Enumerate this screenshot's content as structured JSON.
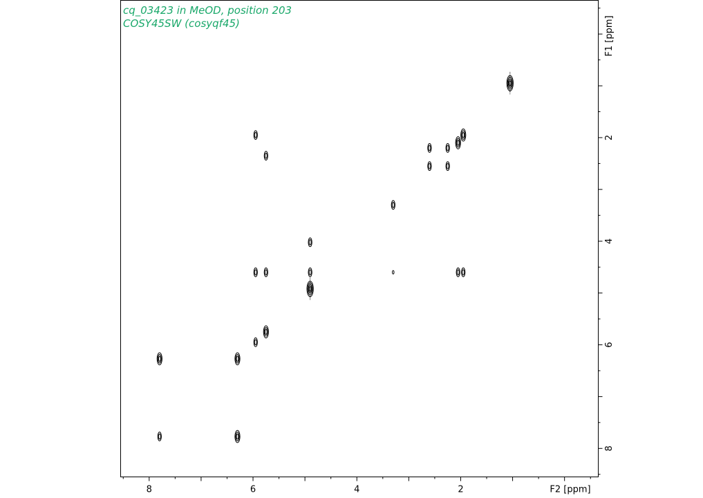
{
  "title_lines": [
    "cq_03423 in MeOD, position 203",
    "COSY45SW (cosyqf45)"
  ],
  "title_color": "#1aa86a",
  "chart_data": {
    "type": "scatter",
    "subtype": "2D NMR contour plot (COSY)",
    "x_axis": {
      "label": "F2 [ppm]",
      "range": [
        8.55,
        -0.65
      ],
      "reversed": true,
      "major_ticks": [
        8,
        6,
        4,
        2
      ],
      "position": "bottom"
    },
    "y_axis": {
      "label": "F1 [ppm]",
      "range": [
        -0.65,
        8.55
      ],
      "reversed": true,
      "major_ticks": [
        2,
        4,
        6,
        8
      ],
      "position": "right"
    },
    "grid": false,
    "contour_color": "#000000",
    "peaks": [
      {
        "x": 1.05,
        "y": 0.95,
        "size": 3
      },
      {
        "x": 1.95,
        "y": 1.95,
        "size": 2
      },
      {
        "x": 2.05,
        "y": 2.1,
        "size": 2
      },
      {
        "x": 2.05,
        "y": 4.6,
        "size": 1
      },
      {
        "x": 1.95,
        "y": 4.6,
        "size": 1
      },
      {
        "x": 2.25,
        "y": 2.2,
        "size": 1
      },
      {
        "x": 2.25,
        "y": 2.55,
        "size": 1
      },
      {
        "x": 2.6,
        "y": 2.2,
        "size": 1
      },
      {
        "x": 2.6,
        "y": 2.55,
        "size": 1
      },
      {
        "x": 3.3,
        "y": 3.3,
        "size": 1
      },
      {
        "x": 3.3,
        "y": 4.6,
        "size": 0
      },
      {
        "x": 4.9,
        "y": 4.02,
        "size": 1
      },
      {
        "x": 4.9,
        "y": 4.6,
        "size": 1
      },
      {
        "x": 4.9,
        "y": 4.92,
        "size": 3
      },
      {
        "x": 5.95,
        "y": 1.95,
        "size": 1
      },
      {
        "x": 5.75,
        "y": 2.35,
        "size": 1
      },
      {
        "x": 5.95,
        "y": 4.6,
        "size": 1
      },
      {
        "x": 5.75,
        "y": 4.6,
        "size": 1
      },
      {
        "x": 5.95,
        "y": 5.95,
        "size": 1
      },
      {
        "x": 5.75,
        "y": 5.75,
        "size": 2
      },
      {
        "x": 6.3,
        "y": 6.27,
        "size": 2
      },
      {
        "x": 7.8,
        "y": 6.27,
        "size": 2
      },
      {
        "x": 6.3,
        "y": 7.77,
        "size": 2
      },
      {
        "x": 7.8,
        "y": 7.77,
        "size": 1
      }
    ]
  }
}
